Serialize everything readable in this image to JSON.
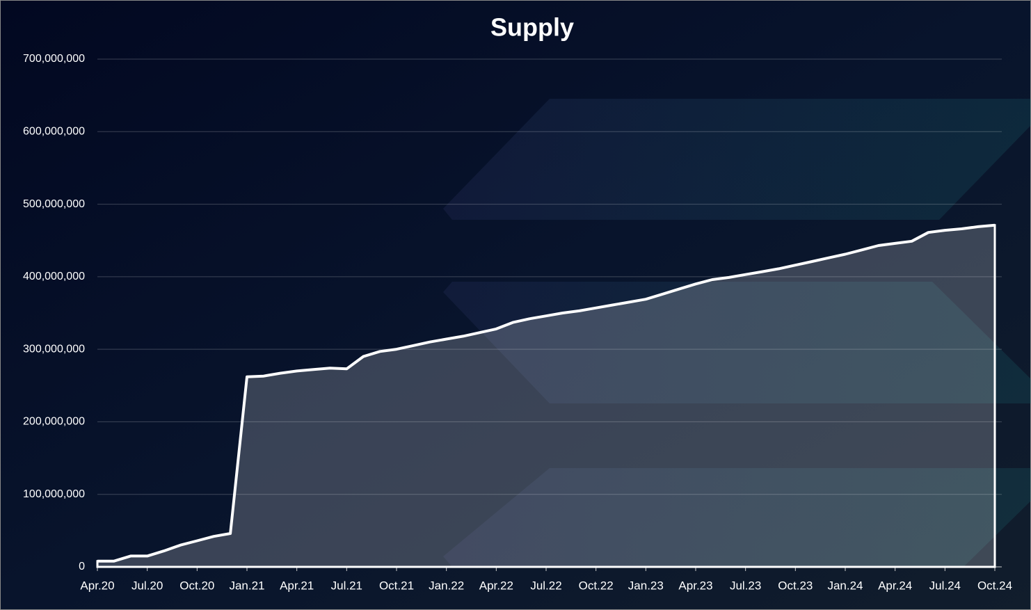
{
  "chart_data": {
    "type": "area",
    "title": "Supply",
    "x": [
      "2020-04",
      "2020-05",
      "2020-06",
      "2020-07",
      "2020-08",
      "2020-09",
      "2020-10",
      "2020-11",
      "2020-12",
      "2021-01",
      "2021-02",
      "2021-03",
      "2021-04",
      "2021-05",
      "2021-06",
      "2021-07",
      "2021-08",
      "2021-09",
      "2021-10",
      "2021-11",
      "2021-12",
      "2022-01",
      "2022-02",
      "2022-03",
      "2022-04",
      "2022-05",
      "2022-06",
      "2022-07",
      "2022-08",
      "2022-09",
      "2022-10",
      "2022-11",
      "2022-12",
      "2023-01",
      "2023-02",
      "2023-03",
      "2023-04",
      "2023-05",
      "2023-06",
      "2023-07",
      "2023-08",
      "2023-09",
      "2023-10",
      "2023-11",
      "2023-12",
      "2024-01",
      "2024-02",
      "2024-03",
      "2024-04",
      "2024-05",
      "2024-06",
      "2024-07",
      "2024-08",
      "2024-09",
      "2024-10"
    ],
    "series": [
      {
        "name": "Supply",
        "color": "#ffffff",
        "values": [
          8000000,
          8000000,
          15000000,
          15000000,
          22000000,
          30000000,
          36000000,
          42000000,
          46000000,
          262000000,
          263000000,
          267000000,
          270000000,
          272000000,
          274000000,
          273000000,
          290000000,
          297000000,
          300000000,
          305000000,
          310000000,
          314000000,
          318000000,
          323000000,
          328000000,
          337000000,
          342000000,
          346000000,
          350000000,
          353000000,
          357000000,
          361000000,
          365000000,
          369000000,
          376000000,
          383000000,
          390000000,
          396000000,
          399000000,
          403000000,
          407000000,
          411000000,
          416000000,
          421000000,
          426000000,
          431000000,
          437000000,
          443000000,
          446000000,
          449000000,
          461000000,
          464000000,
          466000000,
          469000000,
          471000000
        ]
      }
    ],
    "xlim": [
      "2020-04",
      "2024-10"
    ],
    "xticks": [
      {
        "value": "2020-04",
        "label": "Apr.20"
      },
      {
        "value": "2020-07",
        "label": "Jul.20"
      },
      {
        "value": "2020-10",
        "label": "Oct.20"
      },
      {
        "value": "2021-01",
        "label": "Jan.21"
      },
      {
        "value": "2021-04",
        "label": "Apr.21"
      },
      {
        "value": "2021-07",
        "label": "Jul.21"
      },
      {
        "value": "2021-10",
        "label": "Oct.21"
      },
      {
        "value": "2022-01",
        "label": "Jan.22"
      },
      {
        "value": "2022-04",
        "label": "Apr.22"
      },
      {
        "value": "2022-07",
        "label": "Jul.22"
      },
      {
        "value": "2022-10",
        "label": "Oct.22"
      },
      {
        "value": "2023-01",
        "label": "Jan.23"
      },
      {
        "value": "2023-04",
        "label": "Apr.23"
      },
      {
        "value": "2023-07",
        "label": "Jul.23"
      },
      {
        "value": "2023-10",
        "label": "Oct.23"
      },
      {
        "value": "2024-01",
        "label": "Jan.24"
      },
      {
        "value": "2024-04",
        "label": "Apr.24"
      },
      {
        "value": "2024-07",
        "label": "Jul.24"
      },
      {
        "value": "2024-10",
        "label": "Oct.24"
      }
    ],
    "ylim": [
      0,
      700000000
    ],
    "yticks": [
      0,
      {
        "value": 100000000,
        "label": "100,000,000"
      },
      {
        "value": 200000000,
        "label": "200,000,000"
      },
      {
        "value": 300000000,
        "label": "300,000,000"
      },
      {
        "value": 400000000,
        "label": "400,000,000"
      },
      {
        "value": 500000000,
        "label": "500,000,000"
      },
      {
        "value": 600000000,
        "label": "600,000,000"
      },
      {
        "value": 700000000,
        "label": "700,000,000"
      }
    ],
    "grid": true
  }
}
